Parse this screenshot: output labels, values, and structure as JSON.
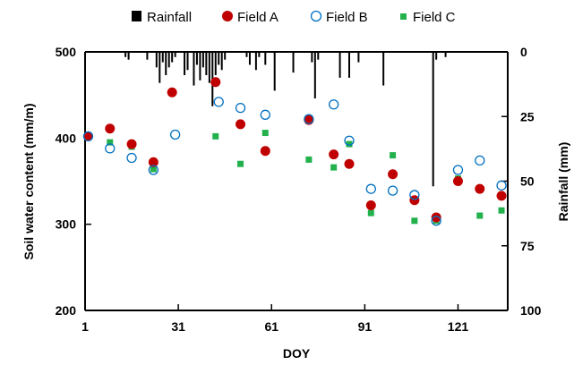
{
  "chart_data": {
    "type": "scatter",
    "title": "",
    "xlabel": "DOY",
    "ylabel": "Soil water content (mm/m)",
    "y2label": "Rainfall (mm)",
    "xlim": [
      1,
      137
    ],
    "ylim": [
      200,
      500
    ],
    "y2lim": [
      0,
      100
    ],
    "y2_inverted": true,
    "x_ticks": [
      1,
      31,
      61,
      91,
      121
    ],
    "y_ticks": [
      200,
      300,
      400,
      500
    ],
    "y2_ticks": [
      0,
      25,
      50,
      75,
      100
    ],
    "legend": {
      "placement": "top",
      "entries": [
        "Rainfall",
        "Field A",
        "Field B",
        "Field C"
      ]
    },
    "grid": false,
    "colors": {
      "field_a": "#c00000",
      "field_b": "#0070c0",
      "field_c": "#22b14c",
      "rainfall": "#000000"
    },
    "rainfall": {
      "name": "Rainfall",
      "x": [
        14,
        15,
        21,
        24,
        25,
        26,
        27,
        28,
        29,
        30,
        33,
        34,
        36,
        37,
        38,
        39,
        40,
        41,
        42,
        43,
        44,
        45,
        46,
        53,
        54,
        56,
        57,
        59,
        62,
        68,
        74,
        75,
        76,
        83,
        86,
        89,
        97,
        113,
        114,
        117,
        137
      ],
      "values": [
        2,
        3,
        3,
        6,
        12,
        4,
        9,
        6,
        4,
        2,
        9,
        7,
        13,
        5,
        11,
        6,
        9,
        12,
        21,
        9,
        5,
        7,
        3,
        2,
        5,
        7,
        2,
        5,
        15,
        8,
        4,
        18,
        3,
        10,
        10,
        4,
        13,
        52,
        3,
        2,
        2
      ]
    },
    "series": [
      {
        "name": "Field A",
        "x": [
          2,
          9,
          16,
          23,
          29,
          43,
          51,
          59,
          73,
          81,
          86,
          93,
          100,
          107,
          114,
          121,
          128,
          135
        ],
        "values": [
          402,
          411,
          393,
          372,
          453,
          465,
          416,
          385,
          421,
          381,
          370,
          322,
          358,
          328,
          308,
          350,
          341,
          333
        ]
      },
      {
        "name": "Field B",
        "x": [
          2,
          9,
          16,
          23,
          30,
          44,
          51,
          59,
          73,
          81,
          86,
          93,
          100,
          107,
          114,
          121,
          128,
          135
        ],
        "values": [
          402,
          388,
          377,
          363,
          404,
          442,
          435,
          427,
          422,
          439,
          397,
          341,
          339,
          334,
          304,
          363,
          374,
          345
        ]
      },
      {
        "name": "Field C",
        "x": [
          2,
          9,
          16,
          23,
          43,
          51,
          59,
          73,
          81,
          86,
          93,
          100,
          107,
          114,
          121,
          128,
          135
        ],
        "values": [
          401,
          395,
          390,
          364,
          402,
          370,
          406,
          375,
          366,
          393,
          313,
          380,
          304,
          304,
          353,
          310,
          316
        ]
      }
    ]
  }
}
